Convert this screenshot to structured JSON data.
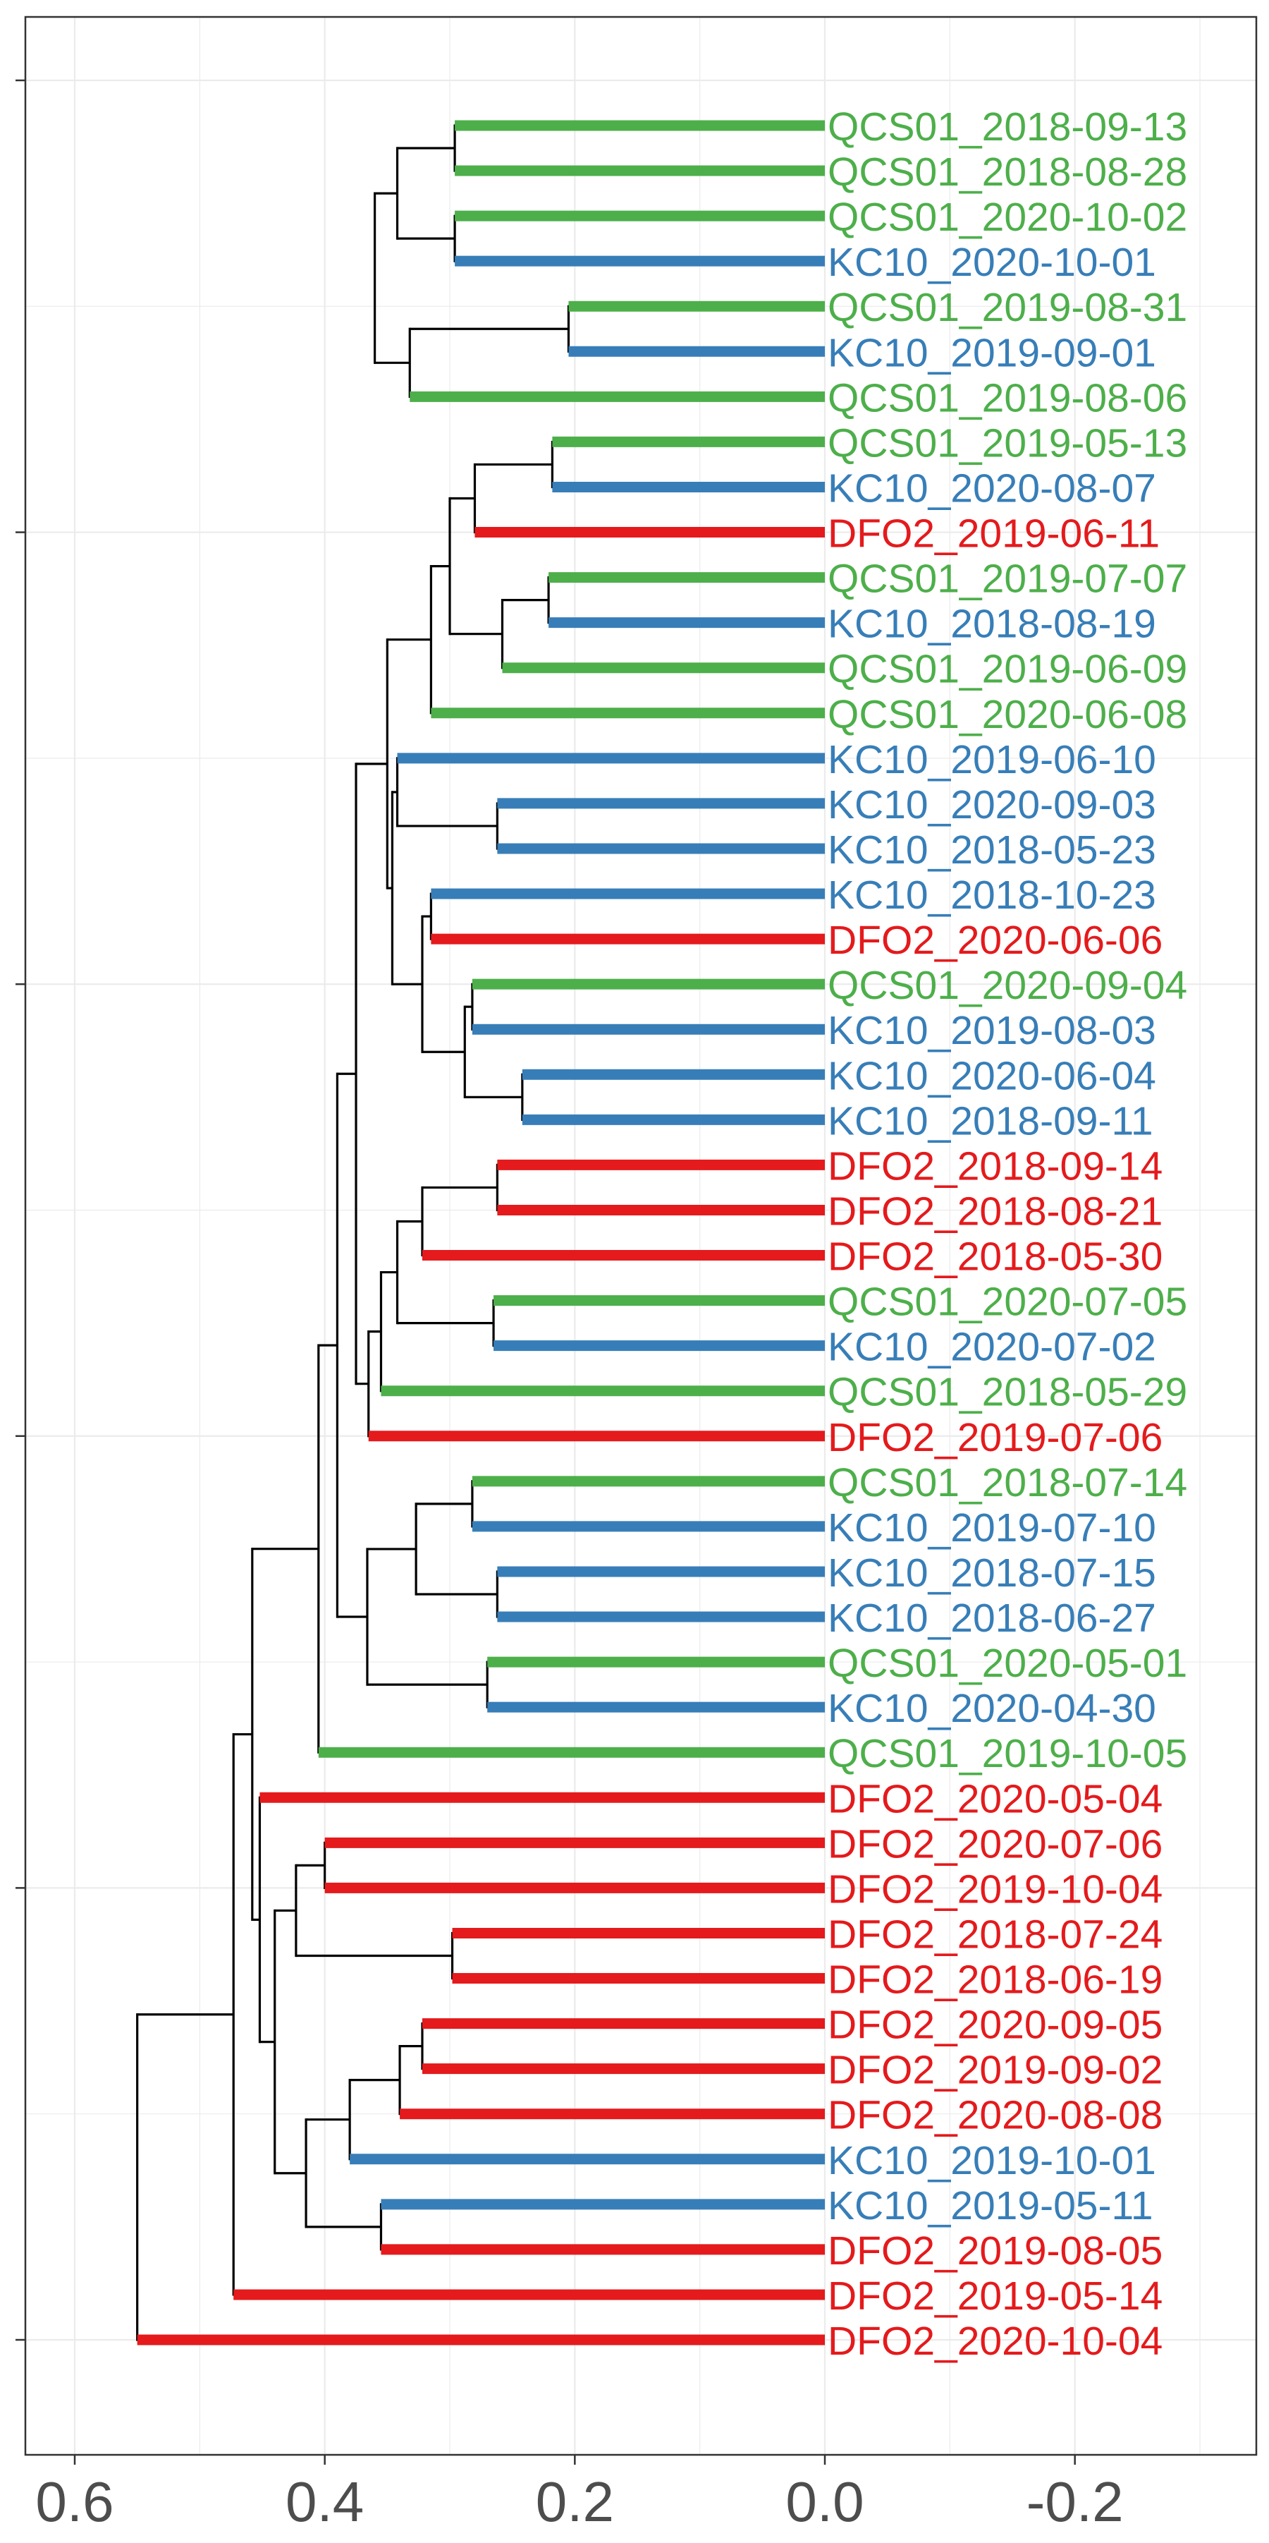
{
  "chart_data": {
    "type": "dendrogram",
    "orientation": "horizontal",
    "x_axis": {
      "ticks": [
        0.6,
        0.4,
        0.2,
        0.0,
        -0.2
      ],
      "tick_labels": [
        "0.6",
        "0.4",
        "0.2",
        "0.0",
        "-0.2"
      ],
      "range": [
        0.64,
        -0.34
      ],
      "grid": true
    },
    "colors": {
      "QCS01": "#4daf4a",
      "KC10": "#377eb8",
      "DFO2": "#e41a1c",
      "branch": "#000000",
      "grid": "#ebebeb",
      "panel_border": "#333333",
      "tick_text": "#4d4d4d"
    },
    "leaves": [
      {
        "label": "QCS01_2018-09-13",
        "site": "QCS01"
      },
      {
        "label": "QCS01_2018-08-28",
        "site": "QCS01"
      },
      {
        "label": "QCS01_2020-10-02",
        "site": "QCS01"
      },
      {
        "label": "KC10_2020-10-01",
        "site": "KC10"
      },
      {
        "label": "QCS01_2019-08-31",
        "site": "QCS01"
      },
      {
        "label": "KC10_2019-09-01",
        "site": "KC10"
      },
      {
        "label": "QCS01_2019-08-06",
        "site": "QCS01"
      },
      {
        "label": "QCS01_2019-05-13",
        "site": "QCS01"
      },
      {
        "label": "KC10_2020-08-07",
        "site": "KC10"
      },
      {
        "label": "DFO2_2019-06-11",
        "site": "DFO2"
      },
      {
        "label": "QCS01_2019-07-07",
        "site": "QCS01"
      },
      {
        "label": "KC10_2018-08-19",
        "site": "KC10"
      },
      {
        "label": "QCS01_2019-06-09",
        "site": "QCS01"
      },
      {
        "label": "QCS01_2020-06-08",
        "site": "QCS01"
      },
      {
        "label": "KC10_2019-06-10",
        "site": "KC10"
      },
      {
        "label": "KC10_2020-09-03",
        "site": "KC10"
      },
      {
        "label": "KC10_2018-05-23",
        "site": "KC10"
      },
      {
        "label": "KC10_2018-10-23",
        "site": "KC10"
      },
      {
        "label": "DFO2_2020-06-06",
        "site": "DFO2"
      },
      {
        "label": "QCS01_2020-09-04",
        "site": "QCS01"
      },
      {
        "label": "KC10_2019-08-03",
        "site": "KC10"
      },
      {
        "label": "KC10_2020-06-04",
        "site": "KC10"
      },
      {
        "label": "KC10_2018-09-11",
        "site": "KC10"
      },
      {
        "label": "DFO2_2018-09-14",
        "site": "DFO2"
      },
      {
        "label": "DFO2_2018-08-21",
        "site": "DFO2"
      },
      {
        "label": "DFO2_2018-05-30",
        "site": "DFO2"
      },
      {
        "label": "QCS01_2020-07-05",
        "site": "QCS01"
      },
      {
        "label": "KC10_2020-07-02",
        "site": "KC10"
      },
      {
        "label": "QCS01_2018-05-29",
        "site": "QCS01"
      },
      {
        "label": "DFO2_2019-07-06",
        "site": "DFO2"
      },
      {
        "label": "QCS01_2018-07-14",
        "site": "QCS01"
      },
      {
        "label": "KC10_2019-07-10",
        "site": "KC10"
      },
      {
        "label": "KC10_2018-07-15",
        "site": "KC10"
      },
      {
        "label": "KC10_2018-06-27",
        "site": "KC10"
      },
      {
        "label": "QCS01_2020-05-01",
        "site": "QCS01"
      },
      {
        "label": "KC10_2020-04-30",
        "site": "KC10"
      },
      {
        "label": "QCS01_2019-10-05",
        "site": "QCS01"
      },
      {
        "label": "DFO2_2020-05-04",
        "site": "DFO2"
      },
      {
        "label": "DFO2_2020-07-06",
        "site": "DFO2"
      },
      {
        "label": "DFO2_2019-10-04",
        "site": "DFO2"
      },
      {
        "label": "DFO2_2018-07-24",
        "site": "DFO2"
      },
      {
        "label": "DFO2_2018-06-19",
        "site": "DFO2"
      },
      {
        "label": "DFO2_2020-09-05",
        "site": "DFO2"
      },
      {
        "label": "DFO2_2019-09-02",
        "site": "DFO2"
      },
      {
        "label": "DFO2_2020-08-08",
        "site": "DFO2"
      },
      {
        "label": "KC10_2019-10-01",
        "site": "KC10"
      },
      {
        "label": "KC10_2019-05-11",
        "site": "KC10"
      },
      {
        "label": "DFO2_2019-08-05",
        "site": "DFO2"
      },
      {
        "label": "DFO2_2019-05-14",
        "site": "DFO2"
      },
      {
        "label": "DFO2_2020-10-04",
        "site": "DFO2"
      }
    ],
    "merges": [
      {
        "a": "L0",
        "b": "L1",
        "h": 0.296,
        "color": "QCS01"
      },
      {
        "a": "L2",
        "b": "L3",
        "h": 0.296,
        "color": "mixed"
      },
      {
        "a": "N0",
        "b": "N1",
        "h": 0.342
      },
      {
        "a": "L4",
        "b": "L5",
        "h": 0.205,
        "color": "mixed"
      },
      {
        "a": "N3",
        "b": "L6",
        "h": 0.332
      },
      {
        "a": "N2",
        "b": "N4",
        "h": 0.36
      },
      {
        "a": "L7",
        "b": "L8",
        "h": 0.218,
        "color": "mixed"
      },
      {
        "a": "N6",
        "b": "L9",
        "h": 0.28
      },
      {
        "a": "L10",
        "b": "L11",
        "h": 0.221,
        "color": "mixed"
      },
      {
        "a": "N8",
        "b": "L12",
        "h": 0.258
      },
      {
        "a": "N7",
        "b": "N9",
        "h": 0.3
      },
      {
        "a": "N10",
        "b": "L13",
        "h": 0.315
      },
      {
        "a": "L15",
        "b": "L16",
        "h": 0.262,
        "color": "KC10"
      },
      {
        "a": "L14",
        "b": "N12",
        "h": 0.342
      },
      {
        "a": "L17",
        "b": "L18",
        "h": 0.315,
        "color": "mixed"
      },
      {
        "a": "L19",
        "b": "L20",
        "h": 0.282,
        "color": "mixed"
      },
      {
        "a": "L21",
        "b": "L22",
        "h": 0.242,
        "color": "KC10"
      },
      {
        "a": "N15",
        "b": "N16",
        "h": 0.288
      },
      {
        "a": "N14",
        "b": "N17",
        "h": 0.322
      },
      {
        "a": "N13",
        "b": "N18",
        "h": 0.346
      },
      {
        "a": "N11",
        "b": "N19",
        "h": 0.35
      },
      {
        "a": "L23",
        "b": "L24",
        "h": 0.262,
        "color": "DFO2"
      },
      {
        "a": "N21",
        "b": "L25",
        "h": 0.322
      },
      {
        "a": "L26",
        "b": "L27",
        "h": 0.265,
        "color": "mixed"
      },
      {
        "a": "N22",
        "b": "N23",
        "h": 0.342
      },
      {
        "a": "N24",
        "b": "L28",
        "h": 0.355
      },
      {
        "a": "N25",
        "b": "L29",
        "h": 0.365
      },
      {
        "a": "N20",
        "b": "N26",
        "h": 0.375
      },
      {
        "a": "L30",
        "b": "L31",
        "h": 0.282,
        "color": "mixed"
      },
      {
        "a": "L32",
        "b": "L33",
        "h": 0.262,
        "color": "KC10"
      },
      {
        "a": "N28",
        "b": "N29",
        "h": 0.327
      },
      {
        "a": "L34",
        "b": "L35",
        "h": 0.27,
        "color": "mixed"
      },
      {
        "a": "N30",
        "b": "N31",
        "h": 0.366
      },
      {
        "a": "N27",
        "b": "N32",
        "h": 0.39
      },
      {
        "a": "N33",
        "b": "L36",
        "h": 0.405
      },
      {
        "a": "L38",
        "b": "L39",
        "h": 0.4,
        "color": "DFO2"
      },
      {
        "a": "L40",
        "b": "L41",
        "h": 0.298,
        "color": "DFO2"
      },
      {
        "a": "N35",
        "b": "N36",
        "h": 0.423
      },
      {
        "a": "L42",
        "b": "L43",
        "h": 0.322,
        "color": "DFO2"
      },
      {
        "a": "N38",
        "b": "L44",
        "h": 0.34
      },
      {
        "a": "N39",
        "b": "L45",
        "h": 0.38
      },
      {
        "a": "L46",
        "b": "L47",
        "h": 0.355,
        "color": "mixed"
      },
      {
        "a": "N40",
        "b": "N41",
        "h": 0.415
      },
      {
        "a": "N37",
        "b": "N42",
        "h": 0.44
      },
      {
        "a": "L37",
        "b": "N43",
        "h": 0.452
      },
      {
        "a": "N34",
        "b": "N44",
        "h": 0.458
      },
      {
        "a": "N45",
        "b": "L48",
        "h": 0.473
      },
      {
        "a": "N46",
        "b": "L49",
        "h": 0.55
      }
    ]
  }
}
